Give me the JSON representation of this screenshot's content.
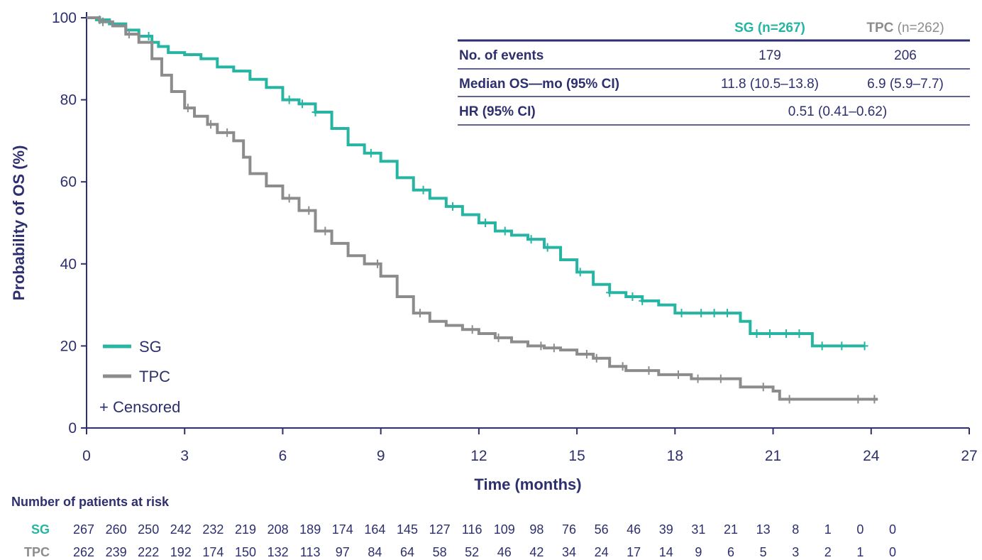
{
  "colors": {
    "sg": "#26b5a3",
    "tpc": "#8c8c8c",
    "text": "#2d2f6e",
    "axis": "#2d2f6e"
  },
  "chart_data": {
    "type": "line",
    "xlabel": "Time (months)",
    "ylabel": "Probability of OS (%)",
    "xlim": [
      0,
      27
    ],
    "ylim": [
      0,
      100
    ],
    "x_ticks": [
      0,
      3,
      6,
      9,
      12,
      15,
      18,
      21,
      24,
      27
    ],
    "y_ticks": [
      0,
      20,
      40,
      60,
      80,
      100
    ],
    "legend_position": "bottom-left",
    "legend": [
      "SG",
      "TPC"
    ],
    "censor_legend": "+ Censored",
    "series": [
      {
        "name": "SG",
        "color": "#26b5a3",
        "points": [
          [
            0,
            100
          ],
          [
            0.3,
            99.5
          ],
          [
            0.7,
            98.5
          ],
          [
            1.2,
            97
          ],
          [
            1.6,
            95.5
          ],
          [
            2.0,
            94
          ],
          [
            2.2,
            93
          ],
          [
            2.5,
            91.5
          ],
          [
            3.0,
            91
          ],
          [
            3.5,
            90
          ],
          [
            4.0,
            88
          ],
          [
            4.5,
            87
          ],
          [
            5.0,
            85
          ],
          [
            5.5,
            83
          ],
          [
            6.0,
            80
          ],
          [
            6.5,
            79
          ],
          [
            7.0,
            77
          ],
          [
            7.5,
            73
          ],
          [
            8.0,
            69
          ],
          [
            8.5,
            67
          ],
          [
            9.0,
            65
          ],
          [
            9.5,
            61
          ],
          [
            10.0,
            58
          ],
          [
            10.5,
            56
          ],
          [
            11.0,
            54
          ],
          [
            11.5,
            52
          ],
          [
            12.0,
            50
          ],
          [
            12.5,
            48
          ],
          [
            13.0,
            47
          ],
          [
            13.5,
            46
          ],
          [
            14.0,
            44
          ],
          [
            14.5,
            41
          ],
          [
            15.0,
            38
          ],
          [
            15.5,
            35
          ],
          [
            16.0,
            33
          ],
          [
            16.5,
            32
          ],
          [
            17.0,
            31
          ],
          [
            17.5,
            30
          ],
          [
            18.0,
            28
          ],
          [
            18.5,
            28
          ],
          [
            19.0,
            28
          ],
          [
            19.5,
            28
          ],
          [
            20.0,
            26
          ],
          [
            20.3,
            23
          ],
          [
            21.0,
            23
          ],
          [
            21.5,
            23
          ],
          [
            22.0,
            23
          ],
          [
            22.2,
            20
          ],
          [
            23.0,
            20
          ],
          [
            23.8,
            20
          ]
        ],
        "censored": [
          0.4,
          1.9,
          6.2,
          6.6,
          7.0,
          8.7,
          10.3,
          11.2,
          12.2,
          12.8,
          13.6,
          14.1,
          15.1,
          16.0,
          16.7,
          17.0,
          18.2,
          18.8,
          19.2,
          19.6,
          20.5,
          20.9,
          21.4,
          21.8,
          22.5,
          23.1,
          23.8
        ]
      },
      {
        "name": "TPC",
        "color": "#8c8c8c",
        "points": [
          [
            0,
            100
          ],
          [
            0.4,
            99
          ],
          [
            0.8,
            98
          ],
          [
            1.2,
            96
          ],
          [
            1.6,
            94
          ],
          [
            2.0,
            90
          ],
          [
            2.3,
            86
          ],
          [
            2.6,
            82
          ],
          [
            3.0,
            78
          ],
          [
            3.3,
            76
          ],
          [
            3.7,
            74
          ],
          [
            4.0,
            72
          ],
          [
            4.5,
            70
          ],
          [
            4.8,
            66
          ],
          [
            5.0,
            62
          ],
          [
            5.5,
            59
          ],
          [
            6.0,
            56
          ],
          [
            6.5,
            53
          ],
          [
            7.0,
            48
          ],
          [
            7.5,
            45
          ],
          [
            8.0,
            42
          ],
          [
            8.5,
            40
          ],
          [
            9.0,
            37
          ],
          [
            9.5,
            32
          ],
          [
            10.0,
            28
          ],
          [
            10.5,
            26
          ],
          [
            11.0,
            25
          ],
          [
            11.5,
            24
          ],
          [
            12.0,
            23
          ],
          [
            12.5,
            22
          ],
          [
            13.0,
            21
          ],
          [
            13.5,
            20
          ],
          [
            14.0,
            19.5
          ],
          [
            14.5,
            19
          ],
          [
            15.0,
            18
          ],
          [
            15.5,
            17
          ],
          [
            16.0,
            15
          ],
          [
            16.5,
            14
          ],
          [
            17.0,
            14
          ],
          [
            17.5,
            13
          ],
          [
            18.0,
            13
          ],
          [
            18.5,
            12
          ],
          [
            19.0,
            12
          ],
          [
            19.5,
            12
          ],
          [
            20.0,
            10
          ],
          [
            20.5,
            10
          ],
          [
            21.0,
            9
          ],
          [
            21.2,
            7
          ],
          [
            22.0,
            7
          ],
          [
            23.0,
            7
          ],
          [
            24.2,
            7
          ]
        ],
        "censored": [
          0.5,
          1.3,
          3.1,
          3.8,
          4.3,
          6.2,
          6.8,
          7.3,
          8.9,
          10.2,
          11.8,
          12.6,
          13.9,
          14.3,
          15.3,
          15.6,
          16.4,
          17.2,
          18.1,
          18.7,
          19.4,
          20.7,
          21.5,
          23.6,
          24.1
        ]
      }
    ]
  },
  "summary_table": {
    "header": {
      "sg": "SG (n=267)",
      "tpc_bold": "TPC",
      "tpc_rest": " (n=262)"
    },
    "rows": [
      {
        "label": "No. of events",
        "sg": "179",
        "tpc": "206"
      },
      {
        "label": "Median OS—mo (95% CI)",
        "sg": "11.8 (10.5–13.8)",
        "tpc": "6.9 (5.9–7.7)"
      },
      {
        "label": "HR (95% CI)",
        "combined": "0.51 (0.41–0.62)"
      }
    ]
  },
  "risk_table": {
    "title": "Number of patients at risk",
    "rows": [
      {
        "label": "SG",
        "values": [
          "267",
          "260",
          "250",
          "242",
          "232",
          "219",
          "208",
          "189",
          "174",
          "164",
          "145",
          "127",
          "116",
          "109",
          "98",
          "76",
          "56",
          "46",
          "39",
          "31",
          "21",
          "13",
          "8",
          "1",
          "0",
          "0"
        ]
      },
      {
        "label": "TPC",
        "values": [
          "262",
          "239",
          "222",
          "192",
          "174",
          "150",
          "132",
          "113",
          "97",
          "84",
          "64",
          "58",
          "52",
          "46",
          "42",
          "34",
          "24",
          "17",
          "14",
          "9",
          "6",
          "5",
          "3",
          "2",
          "1",
          "0"
        ]
      }
    ]
  }
}
